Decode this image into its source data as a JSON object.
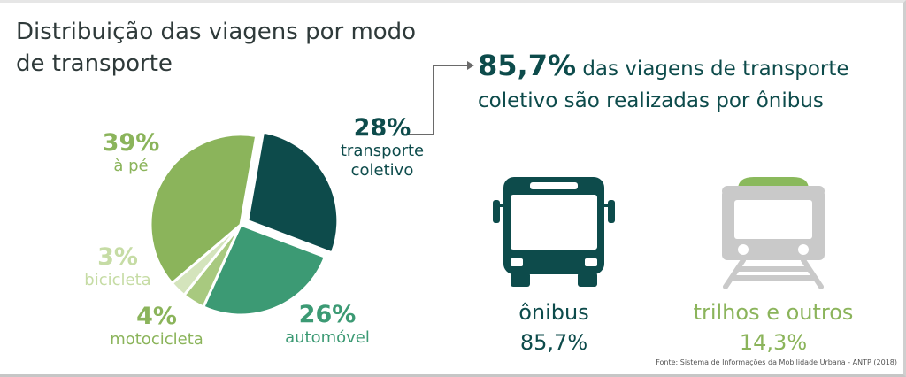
{
  "title": "Distribuição das viagens por modo de transporte",
  "headline": {
    "pct": "85,7%",
    "text": "das viagens de transporte coletivo são realizadas por ônibus"
  },
  "colors": {
    "dark_teal": "#0d4b4b",
    "medium_green": "#3c9a74",
    "light_green": "#8bb45b",
    "pale_green": "#cfe0b4",
    "mid_light_green": "#a8c97f",
    "gray_icon": "#c9c9c9",
    "rail_top": "#8ab95c"
  },
  "chart_data": {
    "type": "pie",
    "title": "Distribuição das viagens por modo de transporte",
    "slices": [
      {
        "label": "transporte coletivo",
        "value": 28,
        "value_label": "28%",
        "color": "#0d4b4b",
        "exploded": true
      },
      {
        "label": "automóvel",
        "value": 26,
        "value_label": "26%",
        "color": "#3c9a74",
        "exploded": false
      },
      {
        "label": "motocicleta",
        "value": 4,
        "value_label": "4%",
        "color": "#a8c97f",
        "exploded": false
      },
      {
        "label": "bicicleta",
        "value": 3,
        "value_label": "3%",
        "color": "#d4e4bc",
        "exploded": false
      },
      {
        "label": "à pé",
        "value": 39,
        "value_label": "39%",
        "color": "#8bb45b",
        "exploded": false
      }
    ]
  },
  "labels": {
    "coletivo_pct": "28%",
    "coletivo_name_1": "transporte",
    "coletivo_name_2": "coletivo",
    "pe_pct": "39%",
    "pe_name": "à pé",
    "bici_pct": "3%",
    "bici_name": "bicicleta",
    "moto_pct": "4%",
    "moto_name": "motocicleta",
    "auto_pct": "26%",
    "auto_name": "automóvel"
  },
  "modes": {
    "bus_name": "ônibus",
    "bus_value": "85,7%",
    "rail_name": "trilhos e outros",
    "rail_value": "14,3%"
  },
  "icons": {
    "bus": "bus-icon",
    "train": "train-icon"
  },
  "source": "Fonte: Sistema de Informações da Mobilidade Urbana - ANTP (2018)"
}
